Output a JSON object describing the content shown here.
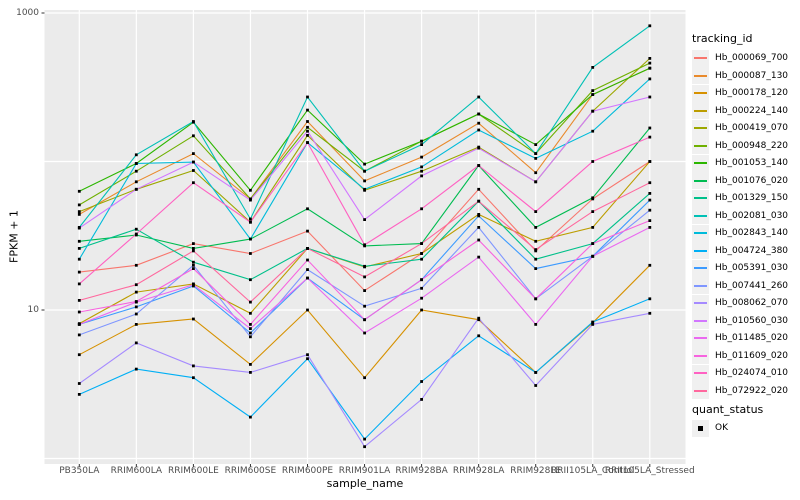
{
  "figure": {
    "background": "#ffffff",
    "panel_color": "#ebebeb",
    "gridline_color": "#ffffff",
    "tick_color": "#333333",
    "tick_label_color": "#4d4d4d",
    "y_axis_title": "FPKM + 1",
    "x_axis_title": "sample_name"
  },
  "legend": {
    "tracking_title": "tracking_id",
    "quant_title": "quant_status",
    "quant_items": [
      {
        "label": "OK",
        "marker": "black-square"
      }
    ]
  },
  "chart_data": {
    "type": "line",
    "yscale": "log10",
    "ylim": [
      1,
      1056
    ],
    "y_tick_labels": [
      {
        "label": "1000",
        "value": 1000
      },
      {
        "label": "10",
        "value": 10
      }
    ],
    "y_gridline_values": [
      1000,
      100,
      10,
      1
    ],
    "grid": true,
    "legend_position": "right",
    "point_color": "#000000",
    "point_shape": "square",
    "x_categories": [
      "PB350LA",
      "RRIM600LA",
      "RRIM600LE",
      "RRIM600SE",
      "RRIM600PE",
      "RRIM901LA",
      "RRIM928BA",
      "RRIM928LA",
      "RRIM928LE",
      "RRII105LA_Control",
      "RRII105LA_Stressed"
    ],
    "series": [
      {
        "id": "Hb_000069_700",
        "color": "#F8766D",
        "values": [
          18,
          20,
          28,
          24,
          34,
          13.5,
          24,
          65,
          25,
          56,
          100
        ]
      },
      {
        "id": "Hb_000087_130",
        "color": "#E98A2C",
        "values": [
          44,
          73,
          113,
          56,
          186,
          74,
          107,
          181,
          84,
          282,
          425
        ]
      },
      {
        "id": "Hb_000178_120",
        "color": "#D69100",
        "values": [
          5.0,
          8.0,
          8.7,
          4.3,
          10,
          3.5,
          10,
          8.6,
          3.8,
          8.2,
          20
        ]
      },
      {
        "id": "Hb_000224_140",
        "color": "#BC9D00",
        "values": [
          8.1,
          13.2,
          15,
          9.5,
          26,
          19.5,
          24,
          44,
          29,
          36,
          100
        ]
      },
      {
        "id": "Hb_000419_070",
        "color": "#9DA700",
        "values": [
          46,
          65,
          87,
          39,
          150,
          64,
          86,
          125,
          73,
          218,
          495
        ]
      },
      {
        "id": "Hb_000948_220",
        "color": "#6FB000",
        "values": [
          51,
          86,
          149,
          56,
          170,
          86,
          137,
          209,
          113,
          300,
          460
        ]
      },
      {
        "id": "Hb_001053_140",
        "color": "#2CB600",
        "values": [
          63,
          97,
          184,
          64,
          222,
          96,
          137,
          209,
          130,
          282,
          425
        ]
      },
      {
        "id": "Hb_001076_020",
        "color": "#00BC51",
        "values": [
          29,
          32,
          26,
          30,
          48,
          27,
          28,
          94,
          36,
          57,
          168
        ]
      },
      {
        "id": "Hb_001329_150",
        "color": "#00C08A",
        "values": [
          26,
          35,
          21,
          16,
          26,
          19.7,
          22,
          54,
          22,
          28,
          61
        ]
      },
      {
        "id": "Hb_002081_030",
        "color": "#00C0B5",
        "values": [
          36,
          111,
          186,
          41,
          272,
          86,
          130,
          272,
          113,
          430,
          820
        ]
      },
      {
        "id": "Hb_002843_140",
        "color": "#00BBDA",
        "values": [
          22,
          97,
          99,
          30,
          134,
          65,
          92,
          163,
          105,
          160,
          360
        ]
      },
      {
        "id": "Hb_004724_380",
        "color": "#00AFF5",
        "values": [
          2.7,
          4.0,
          3.5,
          1.9,
          4.7,
          1.35,
          3.3,
          6.7,
          3.8,
          8.3,
          11.9
        ]
      },
      {
        "id": "Hb_005391_030",
        "color": "#3D9BFF",
        "values": [
          8.0,
          10.5,
          14.5,
          7.0,
          16.4,
          8.6,
          16,
          43,
          19,
          23,
          55
        ]
      },
      {
        "id": "Hb_007441_260",
        "color": "#7F96FF",
        "values": [
          6.8,
          9.4,
          20,
          6.6,
          18.7,
          10.6,
          14,
          36,
          11.9,
          23,
          47
        ]
      },
      {
        "id": "Hb_008062_070",
        "color": "#A58AFF",
        "values": [
          3.2,
          6.0,
          4.2,
          3.8,
          5.0,
          1.2,
          2.5,
          8.8,
          3.1,
          8.0,
          9.5
        ]
      },
      {
        "id": "Hb_010560_030",
        "color": "#D277FF",
        "values": [
          35.6,
          65,
          99,
          55,
          160,
          40.6,
          80,
          123,
          73,
          218,
          272
        ]
      },
      {
        "id": "Hb_011485_020",
        "color": "#EA69F0",
        "values": [
          8.0,
          11.3,
          14.8,
          7.5,
          16.4,
          7.0,
          12,
          22.7,
          8.0,
          23,
          36
        ]
      },
      {
        "id": "Hb_011609_020",
        "color": "#F763DF",
        "values": [
          9.7,
          11.4,
          19,
          8.0,
          21.7,
          8.6,
          16,
          29.6,
          11.9,
          28,
          40
        ]
      },
      {
        "id": "Hb_024074_010",
        "color": "#FF61C2",
        "values": [
          15,
          32.5,
          72,
          39,
          134,
          27.5,
          48,
          94,
          46,
          100,
          146
        ]
      },
      {
        "id": "Hb_072922_020",
        "color": "#FF689E",
        "values": [
          11.6,
          14.8,
          25,
          11.3,
          26,
          16.7,
          28,
          54,
          25.5,
          46,
          72
        ]
      }
    ]
  }
}
